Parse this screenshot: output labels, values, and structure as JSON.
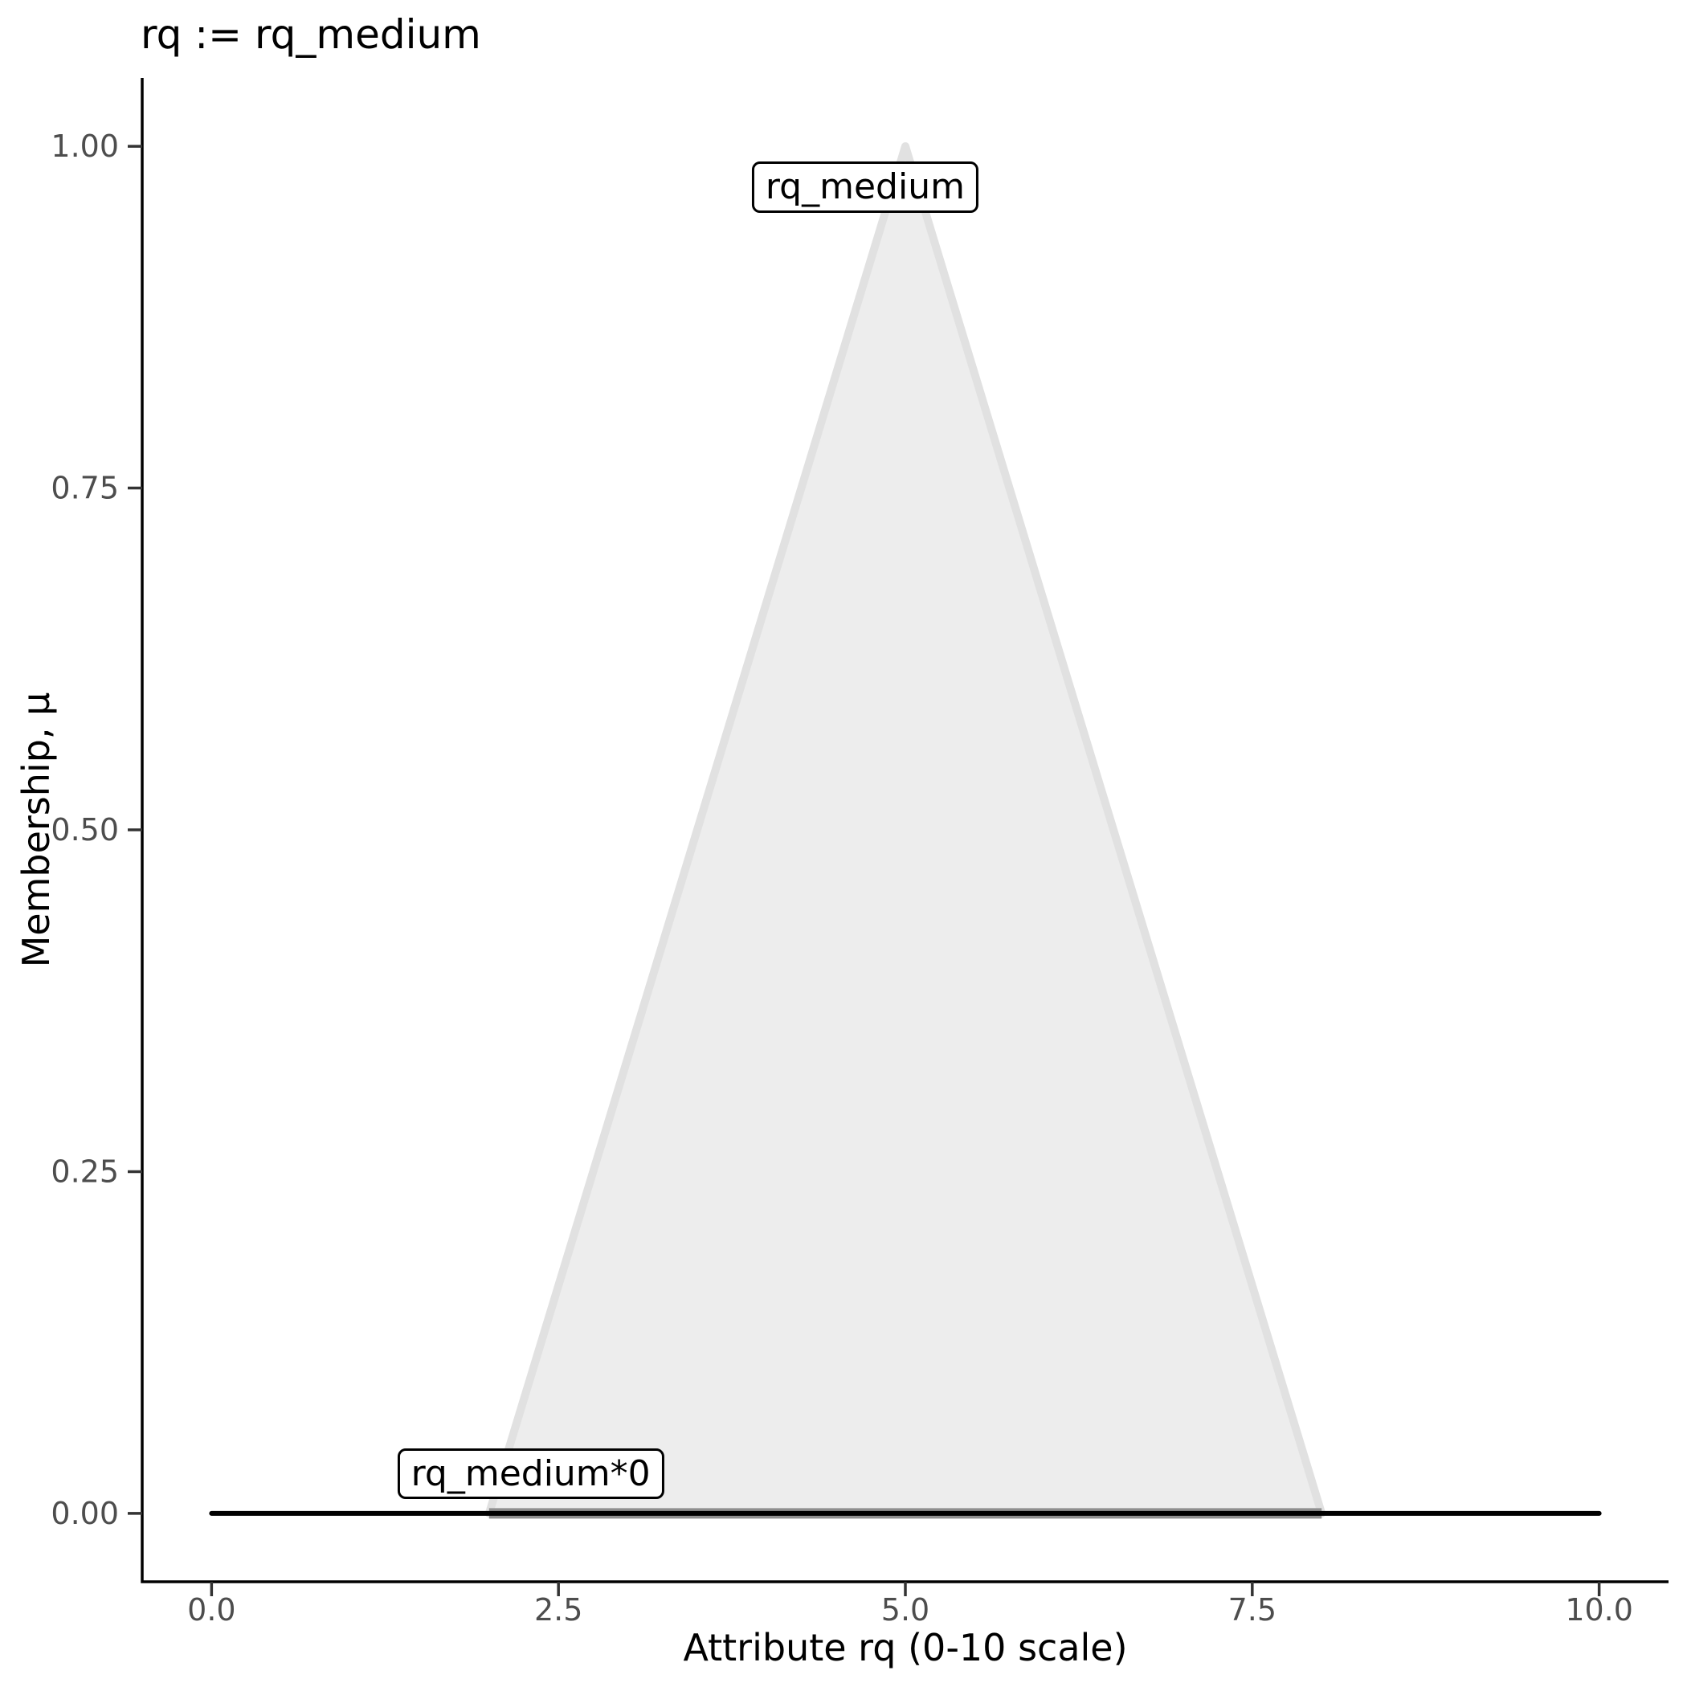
{
  "title": "rq := rq_medium",
  "axes": {
    "x": {
      "label": "Attribute rq (0-10 scale)",
      "ticks": [
        0,
        2.5,
        5,
        7.5,
        10
      ],
      "tick_labels": [
        "0.0",
        "2.5",
        "5.0",
        "7.5",
        "10.0"
      ]
    },
    "y": {
      "label": "Membership, μ",
      "ticks": [
        0,
        0.25,
        0.5,
        0.75,
        1
      ],
      "tick_labels": [
        "0.00",
        "0.25",
        "0.50",
        "0.75",
        "1.00"
      ]
    }
  },
  "chart_data": {
    "type": "area",
    "title": "rq := rq_medium",
    "xlabel": "Attribute rq (0-10 scale)",
    "ylabel": "Membership, μ",
    "xlim": [
      -0.5,
      10.5
    ],
    "ylim": [
      -0.05,
      1.05
    ],
    "grid": false,
    "legend": false,
    "series": [
      {
        "name": "rq_medium",
        "kind": "filled-polygon",
        "x": [
          2,
          5,
          8
        ],
        "y": [
          0,
          1,
          0
        ],
        "fill": "#ededed",
        "stroke": "#e1e1e1",
        "stroke_width": 10,
        "label": {
          "text": "rq_medium",
          "x": 4.71,
          "y": 0.97
        }
      },
      {
        "name": "rq_medium*0",
        "kind": "line",
        "x": [
          2,
          8
        ],
        "y": [
          0,
          0
        ],
        "stroke": "#8f8f8f",
        "stroke_width": 13,
        "label": {
          "text": "rq_medium*0",
          "x": 2.3,
          "y": 0.029
        }
      },
      {
        "name": "zero-baseline",
        "kind": "line",
        "x": [
          0,
          10
        ],
        "y": [
          0,
          0
        ],
        "stroke": "#000000",
        "stroke_width": 6
      }
    ]
  },
  "colors": {
    "axis_line": "#000000",
    "tick_mark": "#333333",
    "tick_text": "#4d4d4d",
    "title_text": "#000000",
    "label_bg": "#ffffff",
    "label_border": "#000000"
  }
}
